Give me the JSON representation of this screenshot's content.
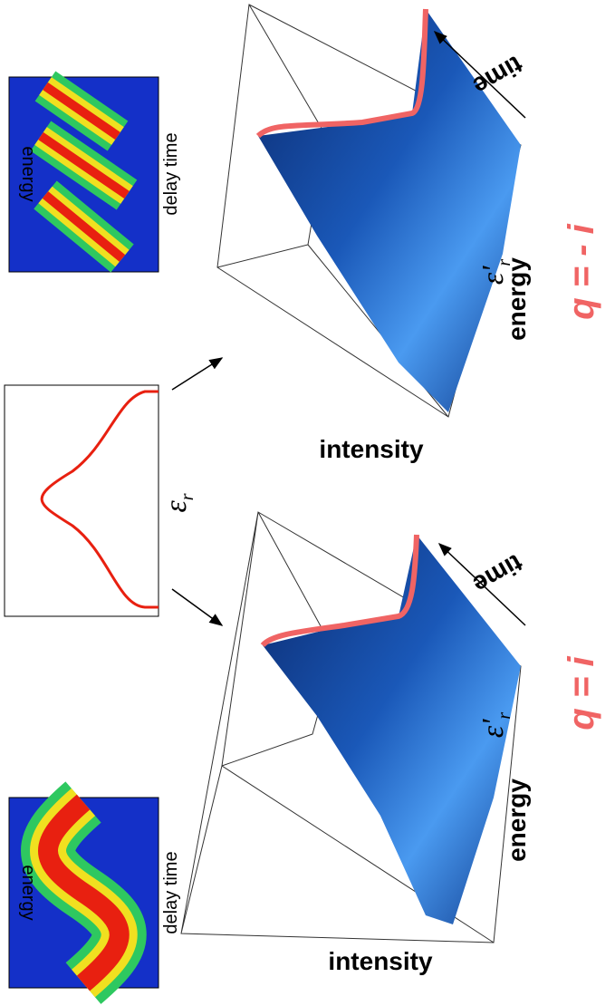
{
  "maps": [
    {
      "y_label": "energy",
      "x_label": "delay time"
    },
    {
      "y_label": "energy",
      "x_label": "delay time"
    }
  ],
  "source": {
    "symbol": "ε",
    "subscript": "r"
  },
  "plots": [
    {
      "intensity_label": "intensity",
      "energy_label": "energy",
      "time_label": "time",
      "marker_symbol": "ε'",
      "marker_subscript": "r",
      "q_label": "q = i"
    },
    {
      "intensity_label": "intensity",
      "energy_label": "energy",
      "time_label": "time",
      "marker_symbol": "ε'",
      "marker_subscript": "r",
      "q_label": "q = - i"
    }
  ]
}
